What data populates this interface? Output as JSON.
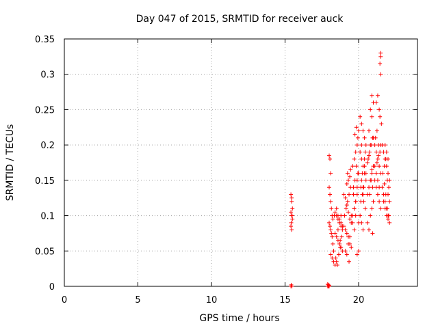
{
  "chart_data": {
    "type": "scatter",
    "title": "Day 047 of 2015, SRMTID for receiver auck",
    "xlabel": "GPS time / hours",
    "ylabel": "SRMTID / TECUs",
    "xlim": [
      0,
      24
    ],
    "ylim": [
      0,
      0.35
    ],
    "grid": true,
    "marker": "+",
    "marker_color": "#ff0000",
    "xticks": [
      0,
      5,
      10,
      15,
      20
    ],
    "xtick_labels": [
      "0",
      "5",
      "10",
      "15",
      "20"
    ],
    "yticks": [
      0,
      0.05,
      0.1,
      0.15,
      0.2,
      0.25,
      0.3,
      0.35
    ],
    "ytick_labels": [
      "0",
      "0.05",
      "0.1",
      "0.15",
      "0.2",
      "0.25",
      "0.3",
      "0.35"
    ],
    "series": [
      {
        "name": "SRMTID",
        "x": [
          15.4,
          15.45,
          15.4,
          15.45,
          15.5,
          15.4,
          15.45,
          15.5,
          15.4,
          15.42,
          15.47,
          15.45,
          15.42,
          15.48,
          17.9,
          17.95,
          18.0,
          17.9,
          17.95,
          18.0,
          17.92,
          17.98,
          18.0,
          18.05,
          18.1,
          18.0,
          18.05,
          18.1,
          18.15,
          18.2,
          18.0,
          18.05,
          18.1,
          18.15,
          18.2,
          18.25,
          18.3,
          18.1,
          18.2,
          18.3,
          18.4,
          18.25,
          18.35,
          18.4,
          18.5,
          18.6,
          18.7,
          18.8,
          18.9,
          18.4,
          18.5,
          18.6,
          18.7,
          18.8,
          18.9,
          18.5,
          18.6,
          18.7,
          18.8,
          18.9,
          18.45,
          18.55,
          18.65,
          18.75,
          18.85,
          18.6,
          18.7,
          18.8,
          18.5,
          18.75,
          19.0,
          19.1,
          19.2,
          19.3,
          19.4,
          19.5,
          19.0,
          19.1,
          19.2,
          19.3,
          19.4,
          19.5,
          19.05,
          19.15,
          19.25,
          19.35,
          19.45,
          19.1,
          19.2,
          19.3,
          19.4,
          19.2,
          19.3,
          19.4,
          19.35,
          19.25,
          19.45,
          19.5,
          19.6,
          19.7,
          19.8,
          19.9,
          20.0,
          19.6,
          19.7,
          19.8,
          19.9,
          20.0,
          19.65,
          19.75,
          19.85,
          19.95,
          19.6,
          19.7,
          19.8,
          19.9,
          20.0,
          19.75,
          19.85,
          19.95,
          19.65,
          19.9,
          20.0,
          19.8,
          19.7,
          19.9,
          20.1,
          20.2,
          20.3,
          20.4,
          20.5,
          20.1,
          20.2,
          20.3,
          20.4,
          20.5,
          20.15,
          20.25,
          20.35,
          20.45,
          20.1,
          20.2,
          20.3,
          20.4,
          20.5,
          20.2,
          20.3,
          20.4,
          20.2,
          20.3,
          20.15,
          20.35,
          20.25,
          20.45,
          20.6,
          20.7,
          20.8,
          20.9,
          21.0,
          20.6,
          20.7,
          20.8,
          20.9,
          21.0,
          20.65,
          20.75,
          20.85,
          20.95,
          20.7,
          20.8,
          20.9,
          21.0,
          20.8,
          20.9,
          21.0,
          20.85,
          20.95,
          20.75,
          20.9,
          20.6,
          20.7,
          20.95,
          21.1,
          21.2,
          21.3,
          21.4,
          21.5,
          21.1,
          21.2,
          21.3,
          21.4,
          21.5,
          21.15,
          21.25,
          21.35,
          21.45,
          21.1,
          21.2,
          21.3,
          21.4,
          21.2,
          21.3,
          21.4,
          21.5,
          21.45,
          21.5,
          21.5,
          21.45,
          21.55,
          21.5,
          21.35,
          21.25,
          21.6,
          21.7,
          21.8,
          21.9,
          22.0,
          22.1,
          21.6,
          21.7,
          21.8,
          21.9,
          22.0,
          22.1,
          21.65,
          21.75,
          21.85,
          21.95,
          22.05,
          21.7,
          21.8,
          21.9,
          22.0,
          21.8,
          21.9,
          22.0,
          22.1,
          21.85,
          21.95,
          22.05,
          21.75,
          22.0
        ],
        "y": [
          0.13,
          0.125,
          0.105,
          0.1,
          0.095,
          0.085,
          0.08,
          0.11,
          0.0,
          0.002,
          0.0,
          0.12,
          0.09,
          0.1,
          0.0,
          0.002,
          0.0,
          0.003,
          0.0,
          0.001,
          0.0,
          0.0,
          0.185,
          0.18,
          0.16,
          0.14,
          0.13,
          0.12,
          0.11,
          0.1,
          0.09,
          0.085,
          0.08,
          0.075,
          0.07,
          0.06,
          0.05,
          0.045,
          0.04,
          0.035,
          0.03,
          0.095,
          0.1,
          0.105,
          0.1,
          0.095,
          0.09,
          0.085,
          0.08,
          0.075,
          0.07,
          0.065,
          0.06,
          0.055,
          0.05,
          0.11,
          0.1,
          0.095,
          0.09,
          0.085,
          0.04,
          0.03,
          0.045,
          0.055,
          0.07,
          0.08,
          0.09,
          0.1,
          0.035,
          0.065,
          0.13,
          0.125,
          0.115,
          0.105,
          0.095,
          0.09,
          0.085,
          0.08,
          0.075,
          0.07,
          0.06,
          0.055,
          0.1,
          0.11,
          0.12,
          0.13,
          0.14,
          0.05,
          0.045,
          0.06,
          0.07,
          0.145,
          0.15,
          0.155,
          0.035,
          0.16,
          0.165,
          0.1,
          0.1,
          0.11,
          0.12,
          0.14,
          0.16,
          0.17,
          0.18,
          0.19,
          0.2,
          0.22,
          0.13,
          0.15,
          0.17,
          0.16,
          0.09,
          0.08,
          0.1,
          0.045,
          0.05,
          0.215,
          0.225,
          0.21,
          0.14,
          0.15,
          0.09,
          0.12,
          0.11,
          0.13,
          0.24,
          0.23,
          0.22,
          0.21,
          0.2,
          0.19,
          0.18,
          0.17,
          0.16,
          0.15,
          0.14,
          0.13,
          0.12,
          0.11,
          0.1,
          0.09,
          0.08,
          0.17,
          0.16,
          0.15,
          0.14,
          0.18,
          0.2,
          0.13,
          0.12,
          0.14,
          0.16,
          0.19,
          0.09,
          0.08,
          0.1,
          0.11,
          0.12,
          0.13,
          0.14,
          0.15,
          0.16,
          0.17,
          0.18,
          0.19,
          0.2,
          0.21,
          0.22,
          0.25,
          0.27,
          0.26,
          0.2,
          0.24,
          0.21,
          0.15,
          0.14,
          0.13,
          0.165,
          0.175,
          0.185,
          0.075,
          0.2,
          0.19,
          0.18,
          0.17,
          0.16,
          0.15,
          0.14,
          0.13,
          0.12,
          0.11,
          0.21,
          0.22,
          0.2,
          0.19,
          0.17,
          0.16,
          0.15,
          0.14,
          0.26,
          0.27,
          0.25,
          0.3,
          0.315,
          0.33,
          0.325,
          0.24,
          0.23,
          0.2,
          0.185,
          0.175,
          0.2,
          0.19,
          0.18,
          0.17,
          0.16,
          0.15,
          0.14,
          0.13,
          0.12,
          0.11,
          0.1,
          0.09,
          0.16,
          0.17,
          0.18,
          0.15,
          0.14,
          0.12,
          0.11,
          0.1,
          0.13,
          0.2,
          0.19,
          0.18,
          0.12,
          0.13,
          0.11,
          0.1,
          0.145,
          0.095
        ]
      }
    ]
  }
}
